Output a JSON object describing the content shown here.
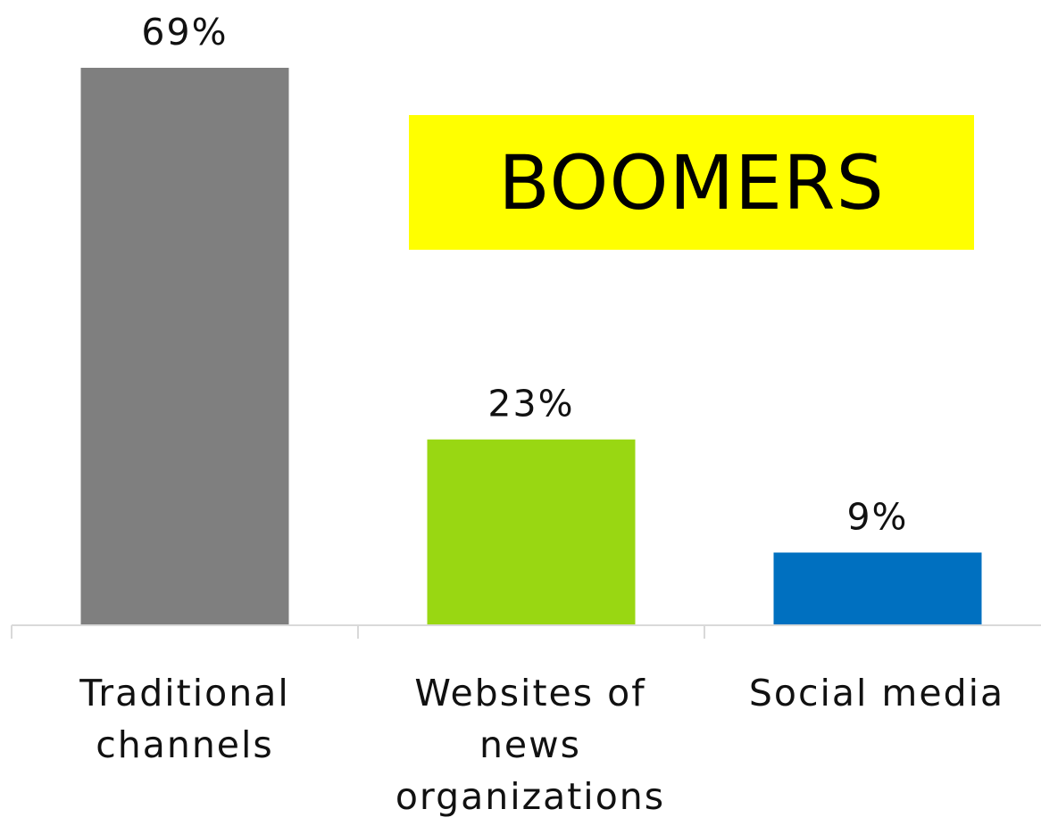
{
  "chart_data": {
    "type": "bar",
    "categories": [
      "Traditional channels",
      "Websites of news organizations",
      "Social media"
    ],
    "values": [
      69,
      23,
      9
    ],
    "value_labels": [
      "69%",
      "23%",
      "9%"
    ],
    "colors": [
      "#7f7f7f",
      "#99d712",
      "#0070c0"
    ],
    "title": "",
    "xlabel": "",
    "ylabel": "",
    "ylim": [
      0,
      69
    ],
    "grid": false,
    "legend": "none",
    "annotation": {
      "text": "BOOMERS",
      "background": "#ffff00"
    }
  }
}
